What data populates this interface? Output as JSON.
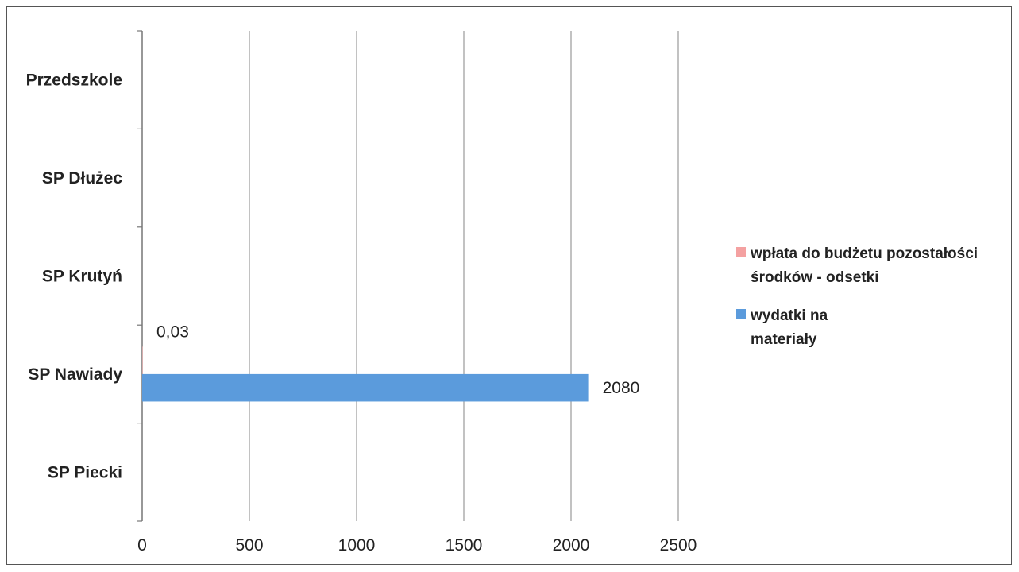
{
  "chart_data": {
    "type": "bar",
    "orientation": "horizontal",
    "categories": [
      "Przedszkole",
      "SP Dłużec",
      "SP Krutyń",
      "SP Nawiady",
      "SP Piecki"
    ],
    "series": [
      {
        "name": "wpłata do budżetu pozostałości środków - odsetki",
        "color": "#f4a1a1",
        "values": [
          0,
          0,
          0,
          0.03,
          0
        ],
        "data_labels": [
          null,
          null,
          null,
          "0,03",
          null
        ]
      },
      {
        "name": "wydatki na materiały",
        "color": "#5b9bdc",
        "values": [
          0,
          0,
          0,
          2080,
          0
        ],
        "data_labels": [
          null,
          null,
          null,
          "2080",
          null
        ]
      }
    ],
    "xlim": [
      0,
      2500
    ],
    "x_ticks": [
      0,
      500,
      1000,
      1500,
      2000,
      2500
    ],
    "x_tick_labels": [
      "0",
      "500",
      "1000",
      "1500",
      "2000",
      "2500"
    ],
    "title": "",
    "xlabel": "",
    "ylabel": "",
    "grid": true,
    "legend_position": "right"
  }
}
